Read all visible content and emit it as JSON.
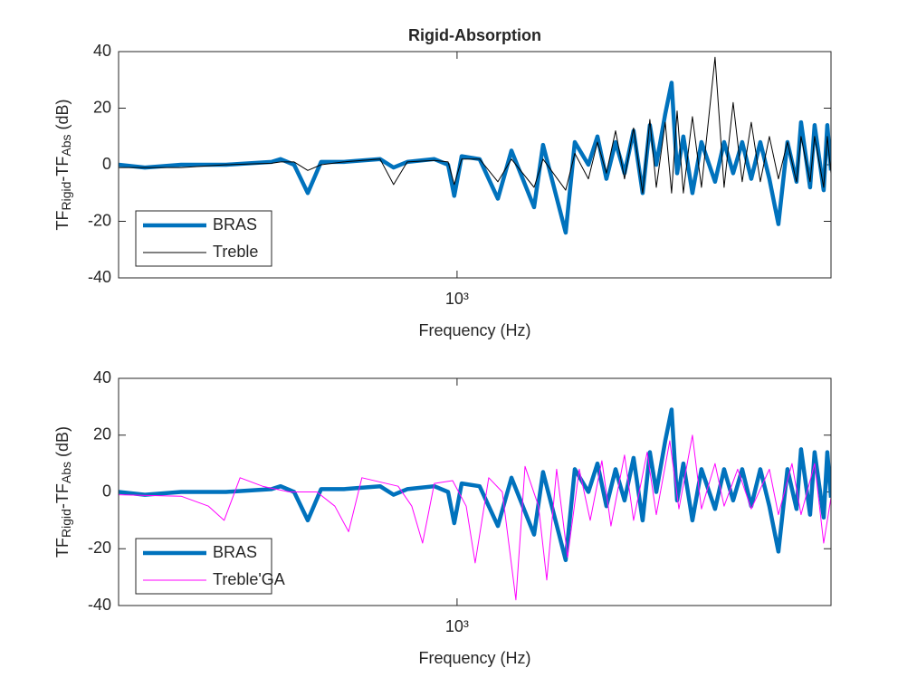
{
  "chart_data": [
    {
      "type": "line",
      "title": "Rigid-Absorption",
      "xlabel": "Frequency (Hz)",
      "ylabel": [
        "TF",
        "Rigid",
        "-TF",
        "Abs",
        " (dB)"
      ],
      "xscale": "log",
      "xlim": [
        233,
        5000
      ],
      "xticks": [
        {
          "value": 1000,
          "label": "10³"
        }
      ],
      "ylim": [
        -40,
        40
      ],
      "yticks": [
        40,
        20,
        0,
        -20,
        -40
      ],
      "legend": "lower left",
      "series": [
        {
          "name": "BRAS",
          "color": "#0072BD",
          "x": [
            233,
            261,
            305,
            370,
            450,
            468,
            496,
            526,
            557,
            614,
            718,
            761,
            807,
            907,
            962,
            988,
            1020,
            1102,
            1192,
            1264,
            1393,
            1448,
            1596,
            1660,
            1760,
            1830,
            1902,
            1978,
            2056,
            2138,
            2223,
            2293,
            2357,
            2450,
            2518,
            2578,
            2649,
            2754,
            2863,
            3035,
            3156,
            3281,
            3412,
            3548,
            3688,
            3835,
            3987,
            4146,
            4310,
            4395,
            4570,
            4660,
            4845,
            4920,
            5000
          ],
          "values": [
            0,
            -1,
            0,
            0,
            1,
            2,
            0,
            -10,
            1,
            1,
            2,
            -1,
            1,
            2,
            0,
            -11,
            3,
            2,
            -12,
            5,
            -15,
            7,
            -24,
            8,
            0,
            10,
            -5,
            8,
            -3,
            12,
            -10,
            14,
            0,
            18,
            29,
            -3,
            10,
            -10,
            8,
            -6,
            8,
            -3,
            8,
            -5,
            8,
            -5,
            -21,
            8,
            -6,
            15,
            -8,
            14,
            -9,
            14,
            -2
          ]
        },
        {
          "name": "Treble",
          "color": "#000000",
          "x": [
            233,
            261,
            305,
            370,
            450,
            468,
            496,
            526,
            557,
            614,
            718,
            761,
            807,
            907,
            962,
            988,
            1020,
            1102,
            1192,
            1264,
            1393,
            1448,
            1596,
            1660,
            1760,
            1830,
            1902,
            1978,
            2056,
            2138,
            2223,
            2293,
            2357,
            2450,
            2518,
            2578,
            2649,
            2754,
            2863,
            3035,
            3156,
            3281,
            3412,
            3548,
            3688,
            3835,
            3987,
            4146,
            4310,
            4395,
            4570,
            4660,
            4845,
            4920,
            5000
          ],
          "values": [
            -1,
            -1,
            -1,
            0,
            0.5,
            1,
            1,
            -2,
            0,
            1,
            2,
            -7,
            1,
            1.5,
            1,
            -7,
            2,
            2,
            -6,
            2,
            -8,
            2,
            -9,
            4,
            -5,
            8,
            -3,
            12,
            -5,
            13,
            -10,
            16,
            -8,
            15,
            -10,
            19,
            -10,
            17,
            -8,
            38,
            -8,
            22,
            -6,
            15,
            -6,
            10,
            -5,
            8,
            -6,
            10,
            -6,
            10,
            -8,
            10,
            -3
          ]
        }
      ]
    },
    {
      "type": "line",
      "xlabel": "Frequency (Hz)",
      "ylabel": [
        "TF",
        "Rigid",
        "-TF",
        "Abs",
        " (dB)"
      ],
      "xscale": "log",
      "xlim": [
        233,
        5000
      ],
      "xticks": [
        {
          "value": 1000,
          "label": "10³"
        }
      ],
      "ylim": [
        -40,
        40
      ],
      "yticks": [
        40,
        20,
        0,
        -20,
        -40
      ],
      "legend": "lower left",
      "series": [
        {
          "name": "BRAS",
          "color": "#0072BD",
          "x": [
            233,
            261,
            305,
            370,
            450,
            468,
            496,
            526,
            557,
            614,
            718,
            761,
            807,
            907,
            962,
            988,
            1020,
            1102,
            1192,
            1264,
            1393,
            1448,
            1596,
            1660,
            1760,
            1830,
            1902,
            1978,
            2056,
            2138,
            2223,
            2293,
            2357,
            2450,
            2518,
            2578,
            2649,
            2754,
            2863,
            3035,
            3156,
            3281,
            3412,
            3548,
            3688,
            3835,
            3987,
            4146,
            4310,
            4395,
            4570,
            4660,
            4845,
            4920,
            5000
          ],
          "values": [
            0,
            -1,
            0,
            0,
            1,
            2,
            0,
            -10,
            1,
            1,
            2,
            -1,
            1,
            2,
            0,
            -11,
            3,
            2,
            -12,
            5,
            -15,
            7,
            -24,
            8,
            0,
            10,
            -5,
            8,
            -3,
            12,
            -10,
            14,
            0,
            18,
            29,
            -3,
            10,
            -10,
            8,
            -6,
            8,
            -3,
            8,
            -5,
            8,
            -5,
            -21,
            8,
            -6,
            15,
            -8,
            14,
            -9,
            14,
            -2
          ]
        },
        {
          "name": "Treble'GA",
          "color": "#FF00FF",
          "x": [
            233,
            305,
            343,
            367,
            393,
            433,
            486,
            547,
            591,
            627,
            664,
            776,
            823,
            862,
            907,
            981,
            1040,
            1081,
            1146,
            1215,
            1288,
            1340,
            1420,
            1471,
            1535,
            1609,
            1692,
            1774,
            1865,
            1939,
            2056,
            2138,
            2266,
            2357,
            2498,
            2598,
            2754,
            2863,
            3035,
            3156,
            3346,
            3548,
            3835,
            3987,
            4227,
            4395,
            4660,
            4845,
            5000
          ],
          "values": [
            -1,
            -1.5,
            -5,
            -10,
            5,
            2,
            0,
            0,
            -5,
            -14,
            5,
            2,
            -5,
            -18,
            3,
            4,
            -5,
            -25,
            5,
            0,
            -38,
            9,
            -5,
            -31,
            8,
            -23,
            8,
            -10,
            11,
            -12,
            13,
            -10,
            14,
            -8,
            18,
            -6,
            20,
            -6,
            10,
            -5,
            8,
            -6,
            8,
            -8,
            10,
            -8,
            10,
            -18,
            -2
          ]
        }
      ]
    }
  ]
}
